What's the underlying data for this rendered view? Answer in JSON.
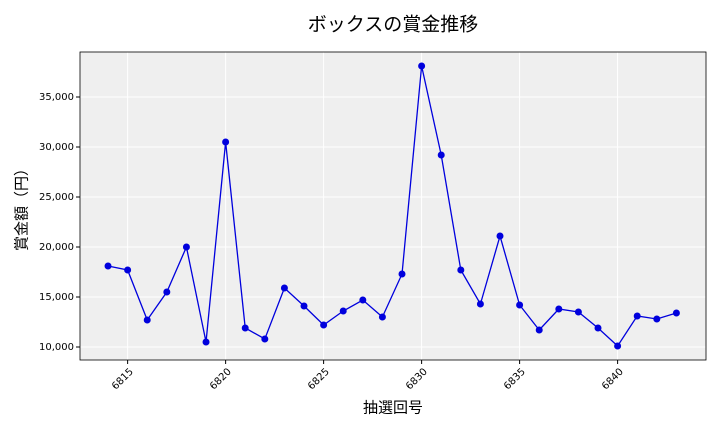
{
  "chart_data": {
    "type": "line",
    "title": "ボックスの賞金推移",
    "x_label": "抽選回号",
    "y_label": "賞金額（円）",
    "x": [
      6814,
      6815,
      6816,
      6817,
      6818,
      6819,
      6820,
      6821,
      6822,
      6823,
      6824,
      6825,
      6826,
      6827,
      6828,
      6829,
      6830,
      6831,
      6832,
      6833,
      6834,
      6835,
      6836,
      6837,
      6838,
      6839,
      6840,
      6841,
      6842,
      6843
    ],
    "series": [
      {
        "name": "ボックス",
        "color": "#0000dd",
        "values": [
          18100,
          17700,
          12700,
          15500,
          20000,
          10500,
          30500,
          11900,
          10800,
          15900,
          14100,
          12200,
          13600,
          14700,
          13000,
          17300,
          38100,
          29200,
          17700,
          14300,
          21100,
          14200,
          11700,
          13800,
          13500,
          11900,
          10100,
          13100,
          12800,
          13400
        ]
      }
    ],
    "xlim": [
      6812.57,
      6844.51
    ],
    "xticks": [
      6815,
      6820,
      6825,
      6830,
      6835,
      6840
    ],
    "ylim": [
      8700,
      39500
    ],
    "yticks": [
      {
        "value": 10000,
        "label": "10,000"
      },
      {
        "value": 15000,
        "label": "15,000"
      },
      {
        "value": 20000,
        "label": "20,000"
      },
      {
        "value": 25000,
        "label": "25,000"
      },
      {
        "value": 30000,
        "label": "30,000"
      },
      {
        "value": 35000,
        "label": "35,000"
      }
    ],
    "grid": true,
    "background": "#efefef"
  }
}
